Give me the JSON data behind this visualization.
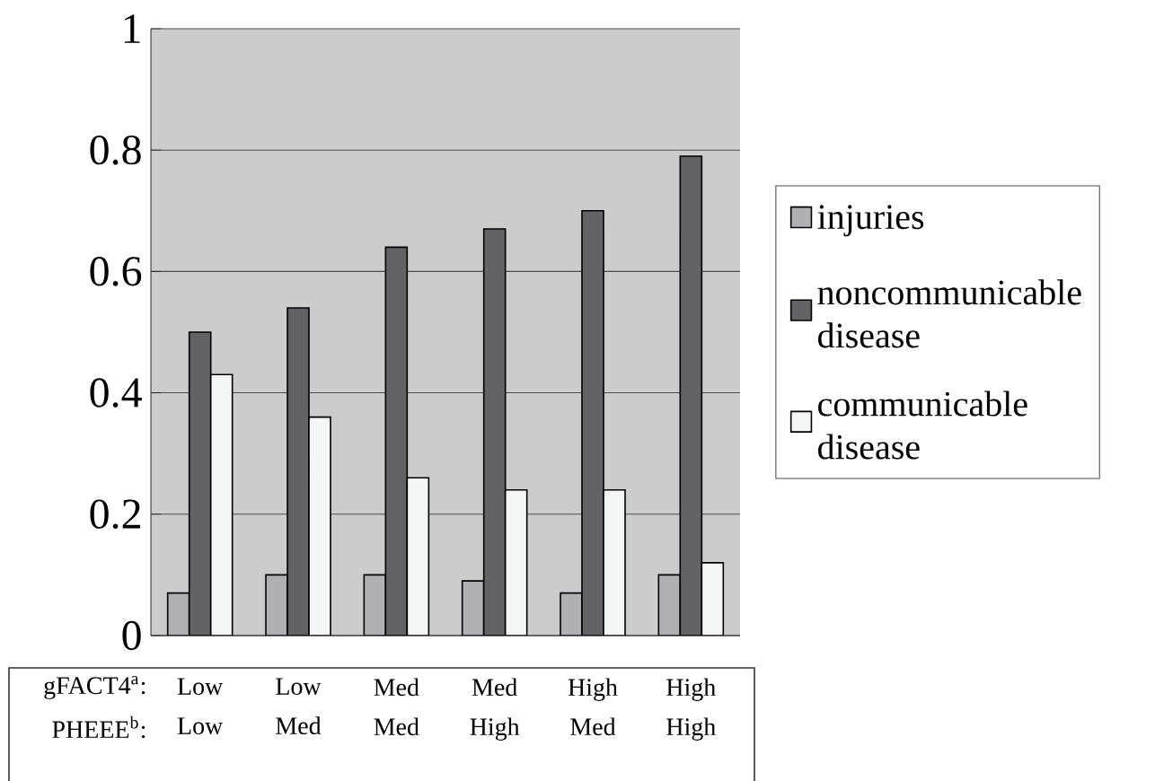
{
  "chart_data": {
    "type": "bar",
    "categories": [
      "Low Low",
      "Low Med",
      "Med Med",
      "Med High",
      "High Med",
      "High High"
    ],
    "series": [
      {
        "name": "injuries",
        "color": "#b0b0b4",
        "values": [
          0.07,
          0.1,
          0.1,
          0.09,
          0.07,
          0.1
        ]
      },
      {
        "name": "noncommunicable disease",
        "color": "#636366",
        "values": [
          0.5,
          0.54,
          0.64,
          0.67,
          0.7,
          0.79
        ]
      },
      {
        "name": "communicable disease",
        "color": "#f4f5f5",
        "values": [
          0.43,
          0.36,
          0.26,
          0.24,
          0.24,
          0.12
        ]
      }
    ],
    "ylim": [
      0,
      1
    ],
    "yticks": [
      0,
      0.2,
      0.4,
      0.6,
      0.8,
      1
    ],
    "grid": "y",
    "legend": "right",
    "annotations": [
      "gFACT4$^{a}$:",
      "PHEEE$^{b}$:"
    ]
  }
}
